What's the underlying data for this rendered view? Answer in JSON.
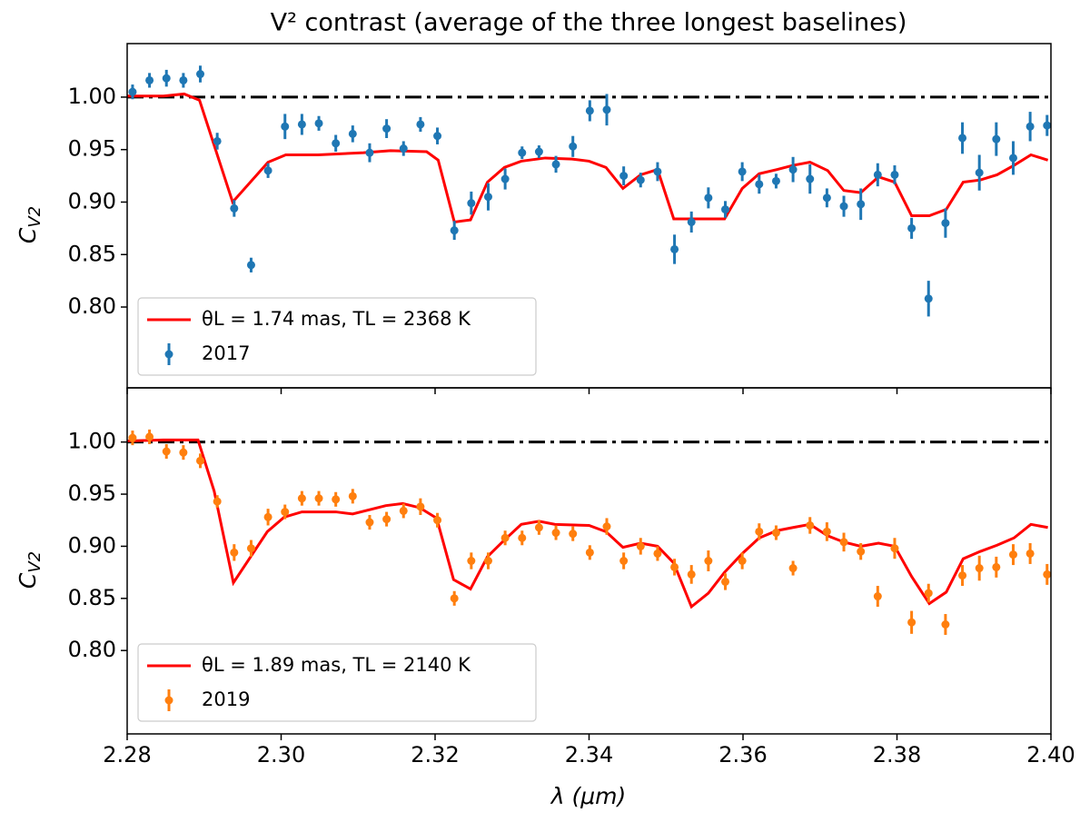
{
  "chart_data": [
    {
      "type": "errorbar",
      "title": "V² contrast (average of the three longest baselines)",
      "ylabel": "C",
      "ylabel_subscript": "V2",
      "xlim": [
        2.28,
        2.4
      ],
      "xticks": [
        2.28,
        2.3,
        2.32,
        2.34,
        2.36,
        2.38,
        2.4
      ],
      "ylim": [
        0.723,
        1.051
      ],
      "yticks": [
        {
          "value": 0.8,
          "label": "0.80"
        },
        {
          "value": 0.85,
          "label": "0.85"
        },
        {
          "value": 0.9,
          "label": "0.90"
        },
        {
          "value": 0.95,
          "label": "0.95"
        },
        {
          "value": 1.0,
          "label": "1.00"
        }
      ],
      "hline": 1.0,
      "legend": "lower left",
      "series": [
        {
          "name": "θL = 1.74 mas, TL = 2368 K",
          "kind": "line",
          "color": "#ff0000",
          "x": [
            2.28,
            2.2847,
            2.2874,
            2.2894,
            2.2937,
            2.2983,
            2.3006,
            2.3048,
            2.3107,
            2.3142,
            2.3189,
            2.3204,
            2.3225,
            2.3246,
            2.3268,
            2.329,
            2.3312,
            2.3343,
            2.3378,
            2.34,
            2.3422,
            2.3444,
            2.3467,
            2.3489,
            2.351,
            2.3533,
            2.3576,
            2.3599,
            2.3621,
            2.3644,
            2.3665,
            2.3687,
            2.371,
            2.3731,
            2.3753,
            2.3776,
            2.3797,
            2.3819,
            2.3842,
            2.3864,
            2.3886,
            2.3908,
            2.393,
            2.3952,
            2.3974,
            2.3996
          ],
          "values": [
            1.001,
            1.001,
            1.003,
            0.997,
            0.9,
            0.938,
            0.945,
            0.945,
            0.947,
            0.949,
            0.948,
            0.94,
            0.881,
            0.883,
            0.919,
            0.933,
            0.939,
            0.942,
            0.941,
            0.939,
            0.933,
            0.913,
            0.926,
            0.931,
            0.884,
            0.884,
            0.884,
            0.913,
            0.927,
            0.931,
            0.935,
            0.938,
            0.93,
            0.911,
            0.909,
            0.924,
            0.919,
            0.887,
            0.887,
            0.893,
            0.919,
            0.921,
            0.926,
            0.935,
            0.945,
            0.94
          ]
        },
        {
          "name": "2017",
          "kind": "errorbar",
          "color": "#1f77b4",
          "x": [
            2.2807,
            2.2829,
            2.2851,
            2.2873,
            2.2895,
            2.2917,
            2.2939,
            2.2961,
            2.2983,
            2.3005,
            2.3027,
            2.3049,
            2.3071,
            2.3093,
            2.3115,
            2.3137,
            2.3159,
            2.3181,
            2.3203,
            2.3225,
            2.3247,
            2.3269,
            2.3291,
            2.3313,
            2.3335,
            2.3357,
            2.3379,
            2.3401,
            2.3423,
            2.3445,
            2.3467,
            2.3489,
            2.3511,
            2.3533,
            2.3555,
            2.3577,
            2.3599,
            2.3621,
            2.3643,
            2.3665,
            2.3687,
            2.3709,
            2.3731,
            2.3753,
            2.3775,
            2.3797,
            2.3819,
            2.3841,
            2.3863,
            2.3885,
            2.3907,
            2.3929,
            2.3951,
            2.3973,
            2.3995
          ],
          "values": [
            1.005,
            1.016,
            1.018,
            1.016,
            1.022,
            0.958,
            0.894,
            0.84,
            0.93,
            0.972,
            0.974,
            0.975,
            0.956,
            0.965,
            0.947,
            0.97,
            0.951,
            0.974,
            0.963,
            0.873,
            0.899,
            0.905,
            0.922,
            0.947,
            0.948,
            0.936,
            0.953,
            0.987,
            0.988,
            0.925,
            0.921,
            0.929,
            0.855,
            0.881,
            0.904,
            0.893,
            0.929,
            0.917,
            0.92,
            0.931,
            0.922,
            0.904,
            0.896,
            0.898,
            0.926,
            0.926,
            0.875,
            0.808,
            0.88,
            0.961,
            0.928,
            0.96,
            0.942,
            0.972,
            0.973
          ],
          "errors": [
            0.007,
            0.007,
            0.008,
            0.007,
            0.008,
            0.008,
            0.008,
            0.007,
            0.007,
            0.012,
            0.01,
            0.007,
            0.008,
            0.008,
            0.009,
            0.009,
            0.007,
            0.007,
            0.008,
            0.009,
            0.011,
            0.013,
            0.01,
            0.006,
            0.006,
            0.008,
            0.01,
            0.01,
            0.015,
            0.009,
            0.007,
            0.009,
            0.014,
            0.01,
            0.01,
            0.008,
            0.009,
            0.009,
            0.007,
            0.012,
            0.014,
            0.009,
            0.01,
            0.015,
            0.011,
            0.009,
            0.01,
            0.017,
            0.014,
            0.015,
            0.017,
            0.016,
            0.016,
            0.014,
            0.01
          ]
        }
      ]
    },
    {
      "type": "errorbar",
      "xlabel": "λ (μm)",
      "ylabel": "C",
      "ylabel_subscript": "V2",
      "xlim": [
        2.28,
        2.4
      ],
      "xticks": [
        2.28,
        {
          "value": 2.3,
          "label": "2.30"
        },
        2.32,
        2.34,
        2.36,
        2.38,
        {
          "value": 2.4,
          "label": "2.40"
        }
      ],
      "ylim": [
        0.72,
        1.052
      ],
      "yticks": [
        {
          "value": 0.8,
          "label": "0.80"
        },
        {
          "value": 0.85,
          "label": "0.85"
        },
        {
          "value": 0.9,
          "label": "0.90"
        },
        {
          "value": 0.95,
          "label": "0.95"
        },
        {
          "value": 1.0,
          "label": "1.00"
        }
      ],
      "hline": 1.0,
      "legend": "lower left",
      "series": [
        {
          "name": "θL = 1.89 mas, TL = 2140 K",
          "kind": "line",
          "color": "#ff0000",
          "x": [
            2.28,
            2.2847,
            2.2892,
            2.2913,
            2.2938,
            2.2982,
            2.3004,
            2.3027,
            2.3071,
            2.3093,
            2.3136,
            2.3158,
            2.318,
            2.3202,
            2.3224,
            2.3246,
            2.3268,
            2.329,
            2.3312,
            2.3335,
            2.3356,
            2.34,
            2.3422,
            2.3444,
            2.3467,
            2.3489,
            2.351,
            2.3533,
            2.3555,
            2.3576,
            2.3599,
            2.3621,
            2.3644,
            2.3665,
            2.3687,
            2.371,
            2.3731,
            2.3753,
            2.3776,
            2.3797,
            2.3819,
            2.3842,
            2.3864,
            2.3886,
            2.3908,
            2.393,
            2.3952,
            2.3974,
            2.3996
          ],
          "values": [
            1.001,
            1.002,
            1.002,
            0.953,
            0.865,
            0.914,
            0.928,
            0.933,
            0.933,
            0.931,
            0.939,
            0.941,
            0.937,
            0.927,
            0.868,
            0.859,
            0.89,
            0.906,
            0.921,
            0.924,
            0.921,
            0.92,
            0.914,
            0.899,
            0.903,
            0.9,
            0.884,
            0.842,
            0.855,
            0.875,
            0.893,
            0.908,
            0.915,
            0.918,
            0.921,
            0.91,
            0.904,
            0.9,
            0.903,
            0.9,
            0.871,
            0.845,
            0.856,
            0.888,
            0.895,
            0.901,
            0.908,
            0.921,
            0.918
          ]
        },
        {
          "name": "2019",
          "kind": "errorbar",
          "color": "#ff7f0e",
          "x": [
            2.2807,
            2.2829,
            2.2851,
            2.2873,
            2.2895,
            2.2917,
            2.2939,
            2.2961,
            2.2983,
            2.3005,
            2.3027,
            2.3049,
            2.3071,
            2.3093,
            2.3115,
            2.3137,
            2.3159,
            2.3181,
            2.3203,
            2.3225,
            2.3247,
            2.3269,
            2.3291,
            2.3313,
            2.3335,
            2.3357,
            2.3379,
            2.3401,
            2.3423,
            2.3445,
            2.3467,
            2.3489,
            2.3511,
            2.3533,
            2.3555,
            2.3577,
            2.3599,
            2.3621,
            2.3643,
            2.3665,
            2.3687,
            2.3709,
            2.3731,
            2.3753,
            2.3775,
            2.3797,
            2.3819,
            2.3841,
            2.3863,
            2.3885,
            2.3907,
            2.3929,
            2.3951,
            2.3973,
            2.3995
          ],
          "values": [
            1.004,
            1.005,
            0.991,
            0.99,
            0.982,
            0.943,
            0.894,
            0.898,
            0.928,
            0.933,
            0.946,
            0.946,
            0.945,
            0.948,
            0.923,
            0.926,
            0.934,
            0.938,
            0.925,
            0.85,
            0.886,
            0.886,
            0.908,
            0.908,
            0.918,
            0.913,
            0.912,
            0.894,
            0.919,
            0.886,
            0.9,
            0.893,
            0.88,
            0.873,
            0.886,
            0.866,
            0.886,
            0.914,
            0.913,
            0.879,
            0.92,
            0.914,
            0.904,
            0.895,
            0.852,
            0.898,
            0.827,
            0.855,
            0.825,
            0.872,
            0.879,
            0.88,
            0.892,
            0.893,
            0.873
          ],
          "errors": [
            0.007,
            0.007,
            0.007,
            0.007,
            0.007,
            0.006,
            0.008,
            0.008,
            0.008,
            0.007,
            0.007,
            0.007,
            0.007,
            0.007,
            0.007,
            0.007,
            0.007,
            0.008,
            0.007,
            0.007,
            0.008,
            0.008,
            0.007,
            0.007,
            0.007,
            0.007,
            0.007,
            0.007,
            0.008,
            0.008,
            0.008,
            0.007,
            0.008,
            0.009,
            0.01,
            0.008,
            0.008,
            0.008,
            0.007,
            0.007,
            0.008,
            0.009,
            0.009,
            0.008,
            0.01,
            0.01,
            0.011,
            0.009,
            0.01,
            0.01,
            0.012,
            0.01,
            0.01,
            0.01,
            0.01
          ]
        }
      ]
    }
  ]
}
